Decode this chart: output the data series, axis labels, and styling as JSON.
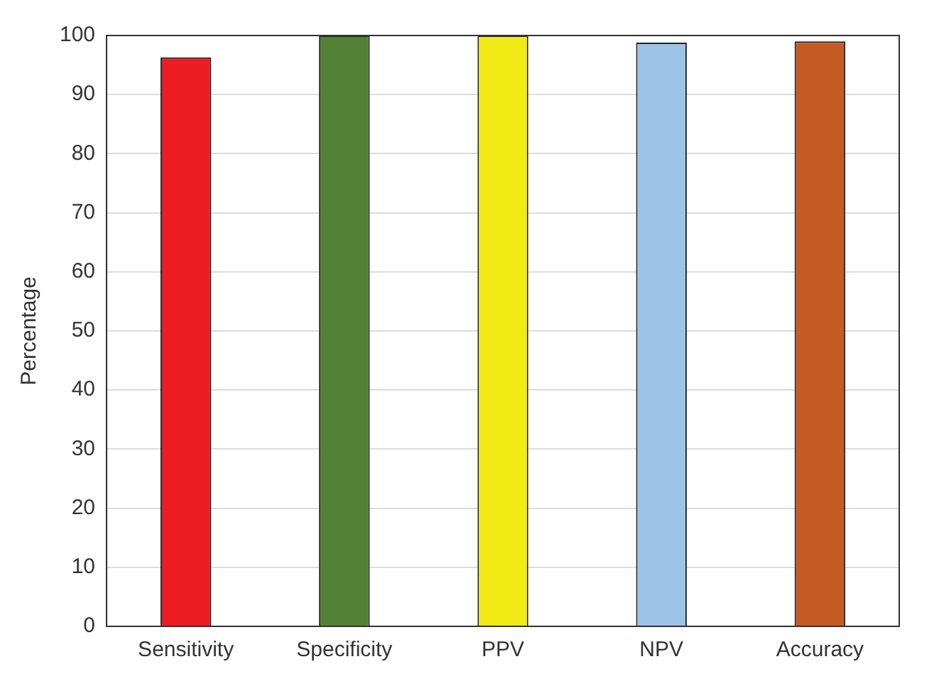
{
  "chart_data": {
    "type": "bar",
    "ylabel": "Percentage",
    "categories": [
      "Sensitivity",
      "Specificity",
      "PPV",
      "NPV",
      "Accuracy"
    ],
    "values": [
      96.3,
      100,
      100,
      98.8,
      99
    ],
    "colors": [
      "#ee1c24",
      "#538135",
      "#f2ea14",
      "#9dc3e6",
      "#c55a25"
    ],
    "ylim": [
      0,
      100
    ],
    "yticks": [
      0,
      10,
      20,
      30,
      40,
      50,
      60,
      70,
      80,
      90,
      100
    ],
    "grid": "y"
  }
}
